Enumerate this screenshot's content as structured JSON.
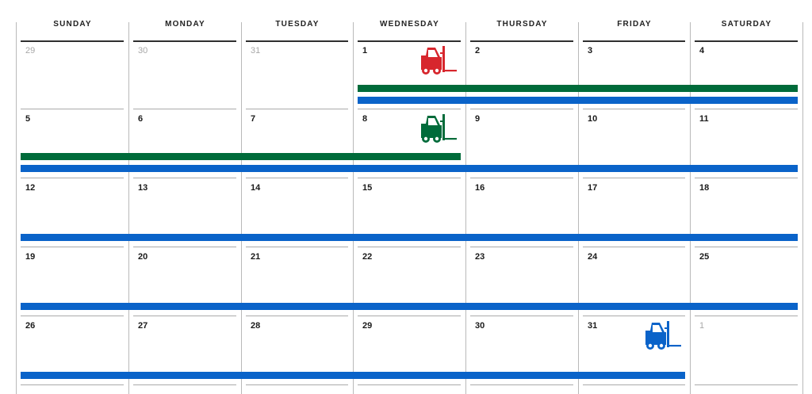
{
  "calendar": {
    "weekdays": [
      "SUNDAY",
      "MONDAY",
      "TUESDAY",
      "WEDNESDAY",
      "THURSDAY",
      "FRIDAY",
      "SATURDAY"
    ],
    "weeks": [
      [
        {
          "day": "29",
          "other": true
        },
        {
          "day": "30",
          "other": true
        },
        {
          "day": "31",
          "other": true
        },
        {
          "day": "1"
        },
        {
          "day": "2"
        },
        {
          "day": "3"
        },
        {
          "day": "4"
        }
      ],
      [
        {
          "day": "5"
        },
        {
          "day": "6"
        },
        {
          "day": "7"
        },
        {
          "day": "8"
        },
        {
          "day": "9"
        },
        {
          "day": "10"
        },
        {
          "day": "11"
        }
      ],
      [
        {
          "day": "12"
        },
        {
          "day": "13"
        },
        {
          "day": "14"
        },
        {
          "day": "15"
        },
        {
          "day": "16"
        },
        {
          "day": "17"
        },
        {
          "day": "18"
        }
      ],
      [
        {
          "day": "19"
        },
        {
          "day": "20"
        },
        {
          "day": "21"
        },
        {
          "day": "22"
        },
        {
          "day": "23"
        },
        {
          "day": "24"
        },
        {
          "day": "25"
        }
      ],
      [
        {
          "day": "26"
        },
        {
          "day": "27"
        },
        {
          "day": "28"
        },
        {
          "day": "29"
        },
        {
          "day": "30"
        },
        {
          "day": "31"
        },
        {
          "day": "1",
          "other": true
        }
      ]
    ],
    "event_bars": [
      {
        "week": 0,
        "from": 3,
        "to": 6,
        "lane": 0,
        "color": "#006b3a"
      },
      {
        "week": 0,
        "from": 3,
        "to": 6,
        "lane": 1,
        "color": "#0a63c9"
      },
      {
        "week": 1,
        "from": 0,
        "to": 3,
        "lane": 0,
        "color": "#006b3a"
      },
      {
        "week": 1,
        "from": 0,
        "to": 6,
        "lane": 1,
        "color": "#0a63c9"
      },
      {
        "week": 2,
        "from": 0,
        "to": 6,
        "lane": 1,
        "color": "#0a63c9"
      },
      {
        "week": 3,
        "from": 0,
        "to": 6,
        "lane": 1,
        "color": "#0a63c9"
      },
      {
        "week": 4,
        "from": 0,
        "to": 5,
        "lane": 1,
        "color": "#0a63c9"
      }
    ],
    "forklifts": [
      {
        "week": 0,
        "col": 3,
        "color": "#d7262d",
        "icon": "forklift-icon"
      },
      {
        "week": 1,
        "col": 3,
        "color": "#006b3a",
        "icon": "forklift-icon"
      },
      {
        "week": 4,
        "col": 5,
        "color": "#0a63c9",
        "icon": "forklift-icon"
      }
    ]
  }
}
